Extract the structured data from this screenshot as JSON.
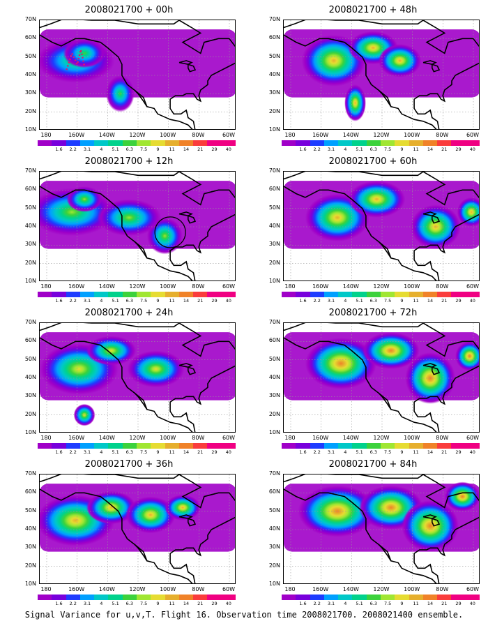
{
  "caption": "Signal Variance for u,v,T. Flight 16. Observation time 2008021700. 2008021400 ensemble.",
  "lat_labels": [
    "70N",
    "60N",
    "50N",
    "40N",
    "30N",
    "20N",
    "10N"
  ],
  "lon_labels": [
    "180",
    "160W",
    "140W",
    "120W",
    "100W",
    "80W",
    "60W"
  ],
  "colorbar_labels": [
    "1.6",
    "2.2",
    "3.1",
    "4",
    "5.1",
    "6.3",
    "7.5",
    "9",
    "11",
    "14",
    "21",
    "29",
    "40"
  ],
  "colorbar_colors": [
    "#a000c8",
    "#7800dc",
    "#1e3cff",
    "#00a0ff",
    "#00c8c8",
    "#00d28c",
    "#3cd23c",
    "#a0e632",
    "#e6dc32",
    "#e6af2d",
    "#f08228",
    "#fa3c3c",
    "#f00082"
  ],
  "panels": [
    {
      "title": "2008021700 + 00h",
      "lead": "00h",
      "intensity": 0.35,
      "circle": false,
      "track": true
    },
    {
      "title": "2008021700 + 12h",
      "lead": "12h",
      "intensity": 0.5,
      "circle": true,
      "track": false
    },
    {
      "title": "2008021700 + 24h",
      "lead": "24h",
      "intensity": 0.6,
      "circle": false,
      "track": false
    },
    {
      "title": "2008021700 + 36h",
      "lead": "36h",
      "intensity": 0.7,
      "circle": false,
      "track": false
    },
    {
      "title": "2008021700 + 48h",
      "lead": "48h",
      "intensity": 0.75,
      "circle": false,
      "track": false
    },
    {
      "title": "2008021700 + 60h",
      "lead": "60h",
      "intensity": 0.8,
      "circle": false,
      "track": false
    },
    {
      "title": "2008021700 + 72h",
      "lead": "72h",
      "intensity": 0.85,
      "circle": false,
      "track": false
    },
    {
      "title": "2008021700 + 84h",
      "lead": "84h",
      "intensity": 0.9,
      "circle": false,
      "track": false
    }
  ]
}
